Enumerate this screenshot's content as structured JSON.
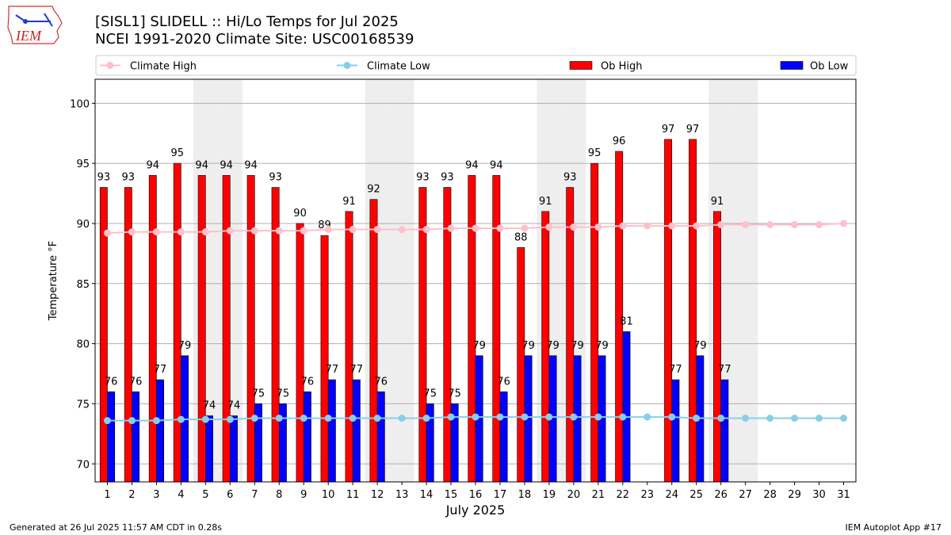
{
  "header": {
    "logo_text": "IEM",
    "title_line1": "[SISL1] SLIDELL :: Hi/Lo Temps for Jul 2025",
    "title_line2": "NCEI 1991-2020 Climate Site: USC00168539"
  },
  "footer": {
    "left": "Generated at 26 Jul 2025 11:57 AM CDT in 0.28s",
    "right": "IEM Autoplot App #17"
  },
  "colors": {
    "ob_high": "#ff0000",
    "ob_low": "#0000ff",
    "climate_high": "#ffc0cb",
    "climate_low": "#87ceeb",
    "weekend_shade": "#eeeeee",
    "grid": "#b0b0b0"
  },
  "chart_data": {
    "type": "bar",
    "xlabel": "July 2025",
    "ylabel": "Temperature °F",
    "ylim": [
      68.5,
      102
    ],
    "yticks": [
      70,
      75,
      80,
      85,
      90,
      95,
      100
    ],
    "grid": "horizontal",
    "legend_position": "top",
    "categories": [
      "1",
      "2",
      "3",
      "4",
      "5",
      "6",
      "7",
      "8",
      "9",
      "10",
      "11",
      "12",
      "13",
      "14",
      "15",
      "16",
      "17",
      "18",
      "19",
      "20",
      "21",
      "22",
      "23",
      "24",
      "25",
      "26",
      "27",
      "28",
      "29",
      "30",
      "31"
    ],
    "weekend_days": [
      5,
      6,
      12,
      13,
      19,
      20,
      26,
      27
    ],
    "series": [
      {
        "name": "Ob High",
        "kind": "bar",
        "values": [
          93,
          93,
          94,
          95,
          94,
          94,
          94,
          93,
          90,
          89,
          91,
          92,
          null,
          93,
          93,
          94,
          94,
          88,
          91,
          93,
          95,
          96,
          null,
          97,
          97,
          91,
          null,
          null,
          null,
          null,
          null
        ]
      },
      {
        "name": "Ob Low",
        "kind": "bar",
        "values": [
          76,
          76,
          77,
          79,
          74,
          74,
          75,
          75,
          76,
          77,
          77,
          76,
          null,
          75,
          75,
          79,
          76,
          79,
          79,
          79,
          79,
          81,
          null,
          77,
          79,
          77,
          null,
          null,
          null,
          null,
          null
        ]
      },
      {
        "name": "Climate High",
        "kind": "line",
        "values": [
          89.2,
          89.3,
          89.3,
          89.3,
          89.3,
          89.4,
          89.4,
          89.4,
          89.4,
          89.5,
          89.5,
          89.5,
          89.5,
          89.5,
          89.6,
          89.6,
          89.6,
          89.6,
          89.7,
          89.7,
          89.7,
          89.8,
          89.8,
          89.8,
          89.8,
          89.9,
          89.9,
          89.9,
          89.9,
          89.9,
          90.0
        ]
      },
      {
        "name": "Climate Low",
        "kind": "line",
        "values": [
          73.6,
          73.6,
          73.6,
          73.7,
          73.7,
          73.7,
          73.8,
          73.8,
          73.8,
          73.8,
          73.8,
          73.8,
          73.8,
          73.8,
          73.9,
          73.9,
          73.9,
          73.9,
          73.9,
          73.9,
          73.9,
          73.9,
          73.9,
          73.9,
          73.8,
          73.8,
          73.8,
          73.8,
          73.8,
          73.8,
          73.8
        ]
      }
    ]
  }
}
